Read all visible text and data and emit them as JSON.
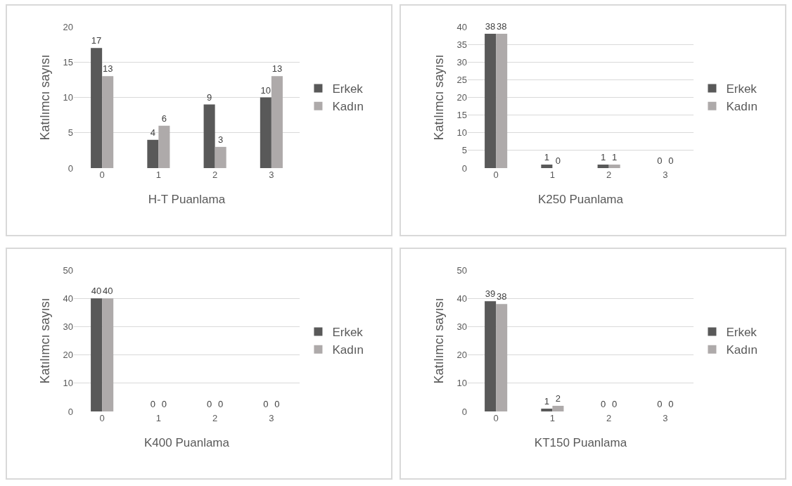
{
  "chart_data": [
    {
      "type": "bar",
      "xlabel": "H-T Puanlama",
      "ylabel": "Katılımcı sayısı",
      "categories": [
        "0",
        "1",
        "2",
        "3"
      ],
      "series": [
        {
          "name": "Erkek",
          "color": "#595959",
          "values": [
            17,
            4,
            9,
            10
          ]
        },
        {
          "name": "Kadın",
          "color": "#aeaaaa",
          "values": [
            13,
            6,
            3,
            13
          ]
        }
      ],
      "ylim": [
        0,
        20
      ],
      "yticks": [
        0,
        5,
        10,
        15,
        20
      ],
      "grid": "y",
      "legend": "right",
      "data_labels": true
    },
    {
      "type": "bar",
      "xlabel": "K250 Puanlama",
      "ylabel": "Katılımcı sayısı",
      "categories": [
        "0",
        "1",
        "2",
        "3"
      ],
      "series": [
        {
          "name": "Erkek",
          "color": "#595959",
          "values": [
            38,
            1,
            1,
            0
          ]
        },
        {
          "name": "Kadın",
          "color": "#aeaaaa",
          "values": [
            38,
            0,
            1,
            0
          ]
        }
      ],
      "ylim": [
        0,
        40
      ],
      "yticks": [
        0,
        5,
        10,
        15,
        20,
        25,
        30,
        35,
        40
      ],
      "grid": "y",
      "legend": "right",
      "data_labels": true
    },
    {
      "type": "bar",
      "xlabel": "K400 Puanlama",
      "ylabel": "Katılımcı sayısı",
      "categories": [
        "0",
        "1",
        "2",
        "3"
      ],
      "series": [
        {
          "name": "Erkek",
          "color": "#595959",
          "values": [
            40,
            0,
            0,
            0
          ]
        },
        {
          "name": "Kadın",
          "color": "#aeaaaa",
          "values": [
            40,
            0,
            0,
            0
          ]
        }
      ],
      "ylim": [
        0,
        50
      ],
      "yticks": [
        0,
        10,
        20,
        30,
        40,
        50
      ],
      "grid": "y",
      "legend": "right",
      "data_labels": true
    },
    {
      "type": "bar",
      "xlabel": "KT150 Puanlama",
      "ylabel": "Katılımcı sayısı",
      "categories": [
        "0",
        "1",
        "2",
        "3"
      ],
      "series": [
        {
          "name": "Erkek",
          "color": "#595959",
          "values": [
            39,
            1,
            0,
            0
          ]
        },
        {
          "name": "Kadın",
          "color": "#aeaaaa",
          "values": [
            38,
            2,
            0,
            0
          ]
        }
      ],
      "ylim": [
        0,
        50
      ],
      "yticks": [
        0,
        10,
        20,
        30,
        40,
        50
      ],
      "grid": "y",
      "legend": "right",
      "data_labels": true
    }
  ]
}
